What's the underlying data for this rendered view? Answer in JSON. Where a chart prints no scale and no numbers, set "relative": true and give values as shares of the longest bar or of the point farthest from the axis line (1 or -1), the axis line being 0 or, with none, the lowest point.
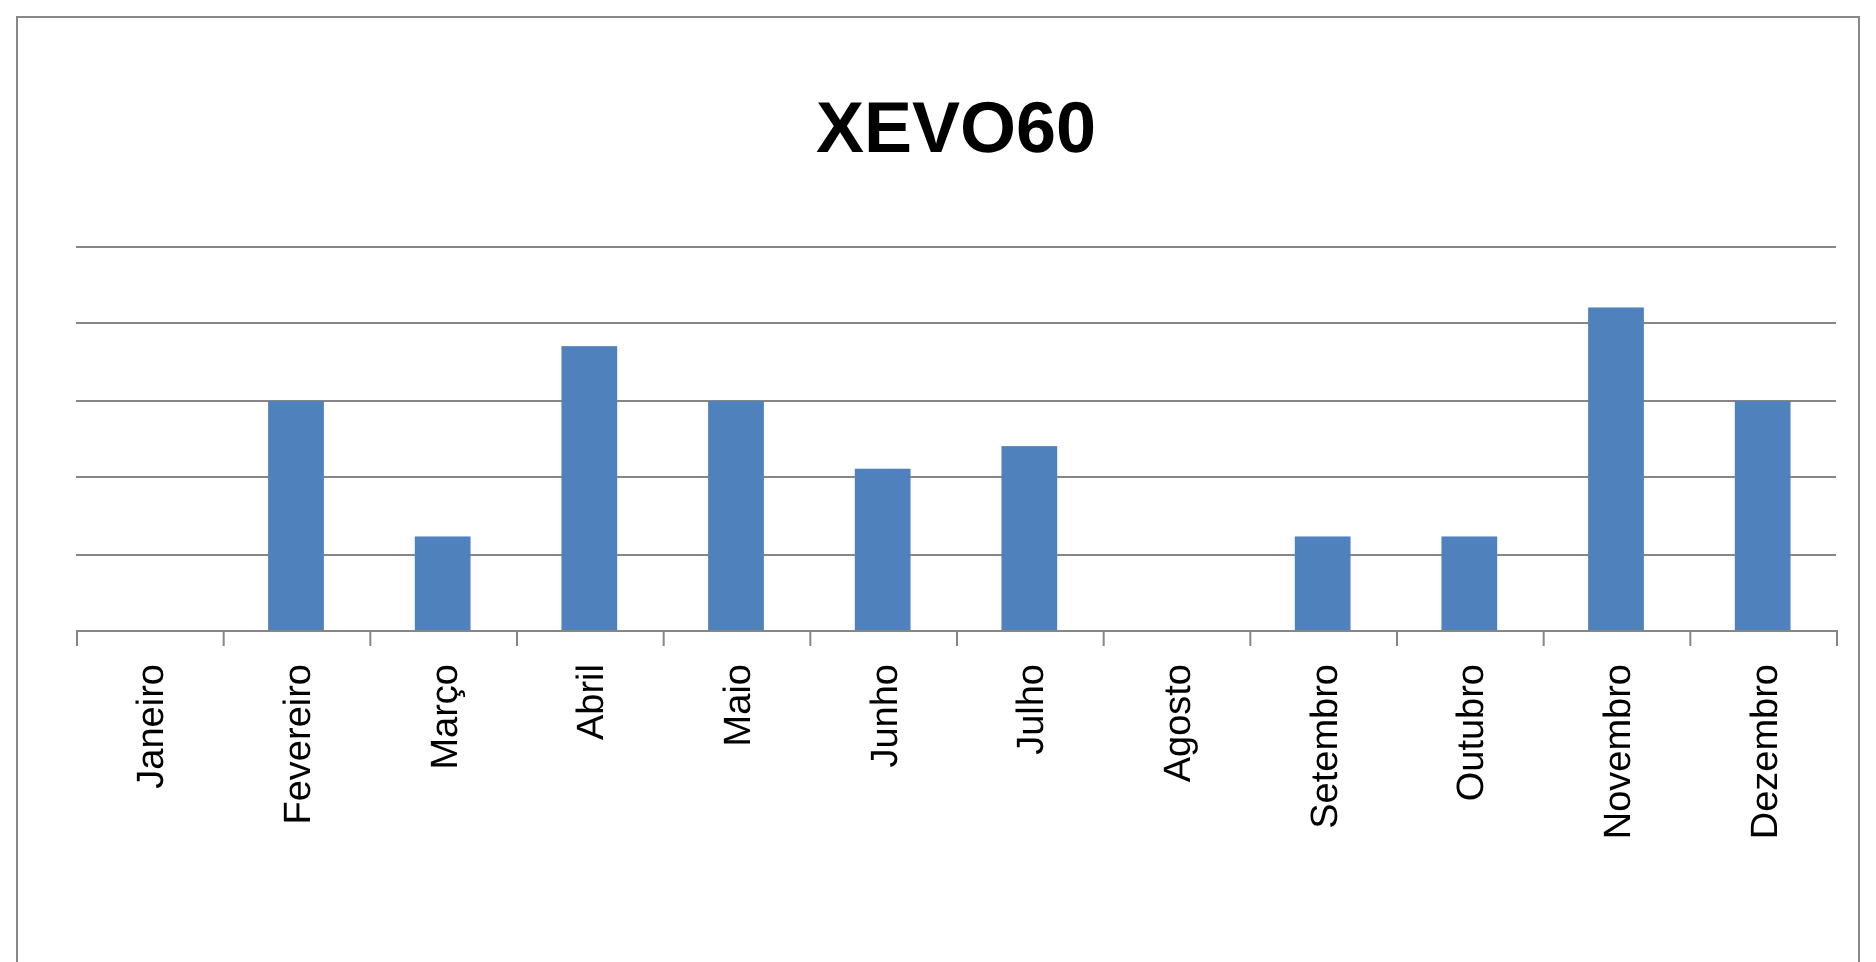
{
  "chart_data": {
    "type": "bar",
    "title": "XEVO60",
    "relative": true,
    "grid": true,
    "categories": [
      "Janeiro",
      "Fevereiro",
      "Março",
      "Abril",
      "Maio",
      "Junho",
      "Julho",
      "Agosto",
      "Setembro",
      "Outubro",
      "Novembro",
      "Dezembro"
    ],
    "color": "#4f81bd",
    "values": [
      0,
      0.71,
      0.29,
      0.88,
      0.71,
      0.5,
      0.57,
      0,
      0.29,
      0.29,
      1,
      0.71
    ]
  }
}
